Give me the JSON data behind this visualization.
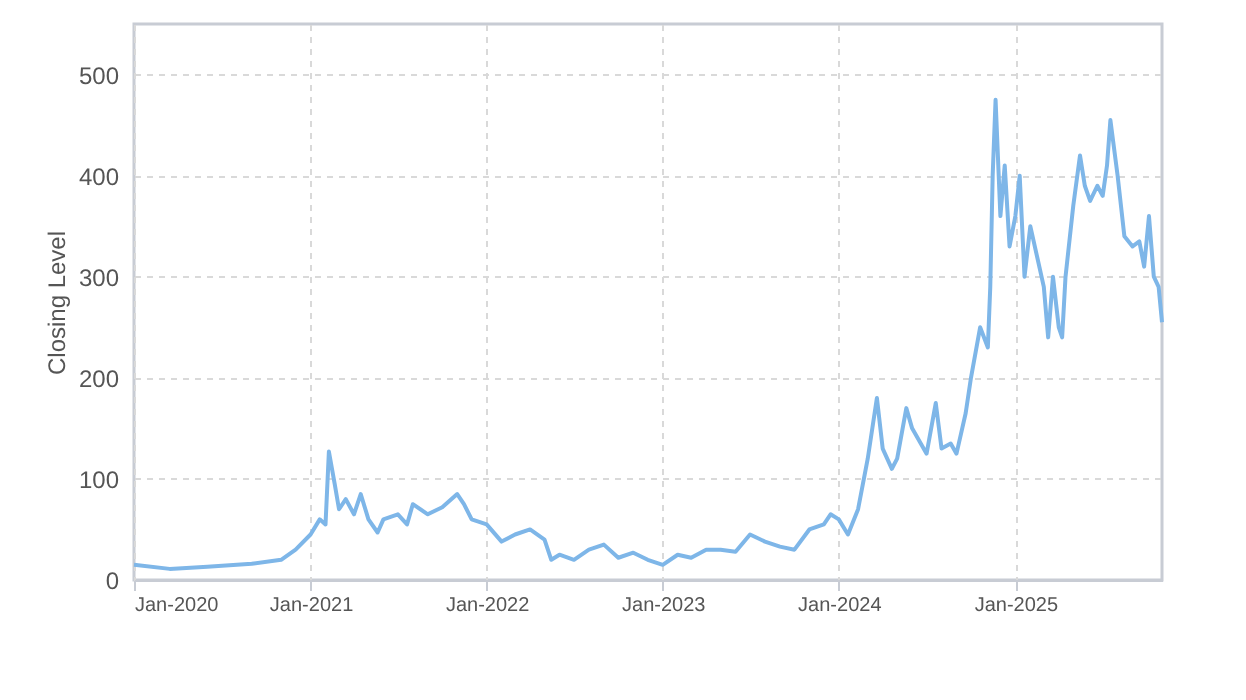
{
  "chart_data": {
    "type": "line",
    "ylabel": "Closing Level",
    "xlim": [
      "2020-01-01",
      "2025-11-01"
    ],
    "ylim": [
      0,
      550
    ],
    "xticks": [
      {
        "value": "2020-01-01",
        "label": "Jan-2020"
      },
      {
        "value": "2021-01-01",
        "label": "Jan-2021"
      },
      {
        "value": "2022-01-01",
        "label": "Jan-2022"
      },
      {
        "value": "2023-01-01",
        "label": "Jan-2023"
      },
      {
        "value": "2024-01-01",
        "label": "Jan-2024"
      },
      {
        "value": "2025-01-01",
        "label": "Jan-2025"
      }
    ],
    "yticks": [
      0,
      100,
      200,
      300,
      400,
      500
    ],
    "grid": true,
    "line_style": "solid",
    "marker": "none",
    "x": [
      "2020-01-01",
      "2020-03-15",
      "2020-06-01",
      "2020-09-01",
      "2020-11-01",
      "2020-12-01",
      "2021-01-01",
      "2021-01-20",
      "2021-02-01",
      "2021-02-08",
      "2021-02-20",
      "2021-03-01",
      "2021-03-15",
      "2021-04-01",
      "2021-04-15",
      "2021-05-01",
      "2021-05-20",
      "2021-06-01",
      "2021-07-01",
      "2021-07-20",
      "2021-08-01",
      "2021-09-01",
      "2021-10-01",
      "2021-11-01",
      "2021-11-15",
      "2021-12-01",
      "2022-01-01",
      "2022-02-01",
      "2022-03-01",
      "2022-04-01",
      "2022-05-01",
      "2022-05-15",
      "2022-06-01",
      "2022-07-01",
      "2022-08-01",
      "2022-09-01",
      "2022-10-01",
      "2022-11-01",
      "2022-12-01",
      "2023-01-01",
      "2023-02-01",
      "2023-03-01",
      "2023-04-01",
      "2023-05-01",
      "2023-06-01",
      "2023-07-01",
      "2023-08-01",
      "2023-09-01",
      "2023-10-01",
      "2023-11-01",
      "2023-12-01",
      "2023-12-15",
      "2024-01-01",
      "2024-01-20",
      "2024-02-10",
      "2024-03-01",
      "2024-03-20",
      "2024-04-01",
      "2024-04-20",
      "2024-05-01",
      "2024-05-20",
      "2024-06-01",
      "2024-07-01",
      "2024-07-20",
      "2024-08-01",
      "2024-08-20",
      "2024-09-01",
      "2024-09-20",
      "2024-10-01",
      "2024-10-20",
      "2024-11-05",
      "2024-11-10",
      "2024-11-15",
      "2024-11-21",
      "2024-12-01",
      "2024-12-10",
      "2024-12-20",
      "2025-01-01",
      "2025-01-10",
      "2025-01-20",
      "2025-02-01",
      "2025-02-15",
      "2025-03-01",
      "2025-03-10",
      "2025-03-20",
      "2025-04-01",
      "2025-04-08",
      "2025-04-15",
      "2025-05-01",
      "2025-05-15",
      "2025-05-25",
      "2025-06-05",
      "2025-06-20",
      "2025-07-01",
      "2025-07-10",
      "2025-07-17",
      "2025-08-01",
      "2025-08-15",
      "2025-09-01",
      "2025-09-15",
      "2025-09-25",
      "2025-10-05",
      "2025-10-15",
      "2025-10-25",
      "2025-11-01"
    ],
    "series": [
      {
        "color": "#7eb6e8",
        "values": [
          15,
          11,
          13,
          16,
          20,
          30,
          45,
          60,
          55,
          127,
          95,
          70,
          80,
          65,
          85,
          60,
          47,
          60,
          65,
          55,
          75,
          65,
          72,
          85,
          75,
          60,
          55,
          38,
          45,
          50,
          40,
          20,
          25,
          20,
          30,
          35,
          22,
          27,
          20,
          15,
          25,
          22,
          30,
          30,
          28,
          45,
          38,
          33,
          30,
          50,
          55,
          65,
          60,
          45,
          70,
          120,
          180,
          130,
          110,
          120,
          170,
          150,
          125,
          175,
          130,
          135,
          125,
          165,
          200,
          250,
          230,
          290,
          400,
          475,
          360,
          410,
          330,
          360,
          400,
          300,
          350,
          320,
          290,
          240,
          300,
          250,
          240,
          300,
          370,
          420,
          390,
          375,
          390,
          380,
          410,
          455,
          400,
          340,
          330,
          335,
          310,
          360,
          300,
          290,
          255
        ]
      }
    ]
  }
}
